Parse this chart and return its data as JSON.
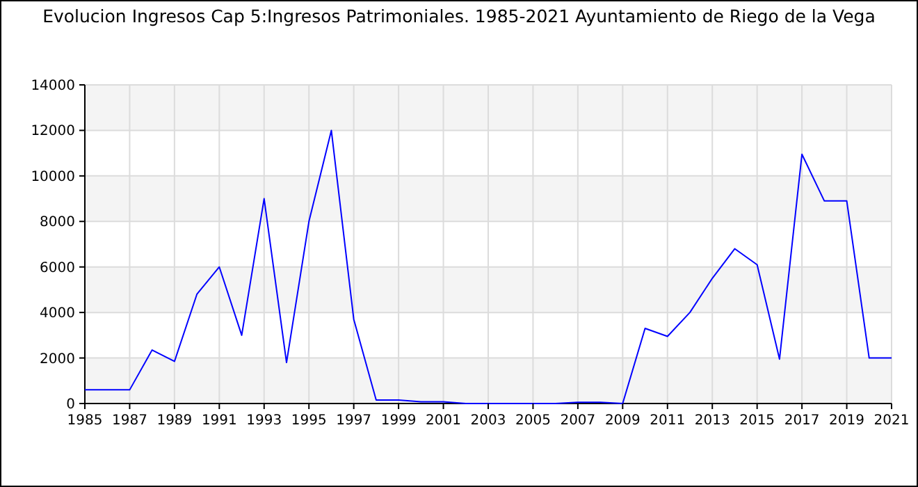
{
  "chart_data": {
    "type": "line",
    "title": "Evolucion Ingresos Cap 5:Ingresos Patrimoniales. 1985-2021 Ayuntamiento de Riego de la Vega",
    "x": [
      1985,
      1986,
      1987,
      1988,
      1989,
      1990,
      1991,
      1992,
      1993,
      1994,
      1995,
      1996,
      1997,
      1998,
      1999,
      2000,
      2001,
      2002,
      2003,
      2004,
      2005,
      2006,
      2007,
      2008,
      2009,
      2010,
      2011,
      2012,
      2013,
      2014,
      2015,
      2016,
      2017,
      2018,
      2019,
      2020,
      2021
    ],
    "series": [
      {
        "color": "#0000ff",
        "values": [
          600,
          600,
          600,
          2350,
          1850,
          4800,
          6000,
          3000,
          9000,
          1800,
          8000,
          12000,
          3700,
          150,
          150,
          80,
          80,
          0,
          0,
          0,
          0,
          0,
          50,
          50,
          0,
          3300,
          2950,
          4000,
          5500,
          6800,
          6100,
          1950,
          10950,
          8900,
          8900,
          2000,
          2000
        ]
      }
    ],
    "xlim": [
      1985,
      2021
    ],
    "xticks": [
      1985,
      1987,
      1989,
      1991,
      1993,
      1995,
      1997,
      1999,
      2001,
      2003,
      2005,
      2007,
      2009,
      2011,
      2013,
      2015,
      2017,
      2019,
      2021
    ],
    "ylim": [
      0,
      14000
    ],
    "yticks": [
      0,
      2000,
      4000,
      6000,
      8000,
      10000,
      12000,
      14000
    ],
    "grid": true,
    "marker": "none",
    "line_style": "solid"
  }
}
